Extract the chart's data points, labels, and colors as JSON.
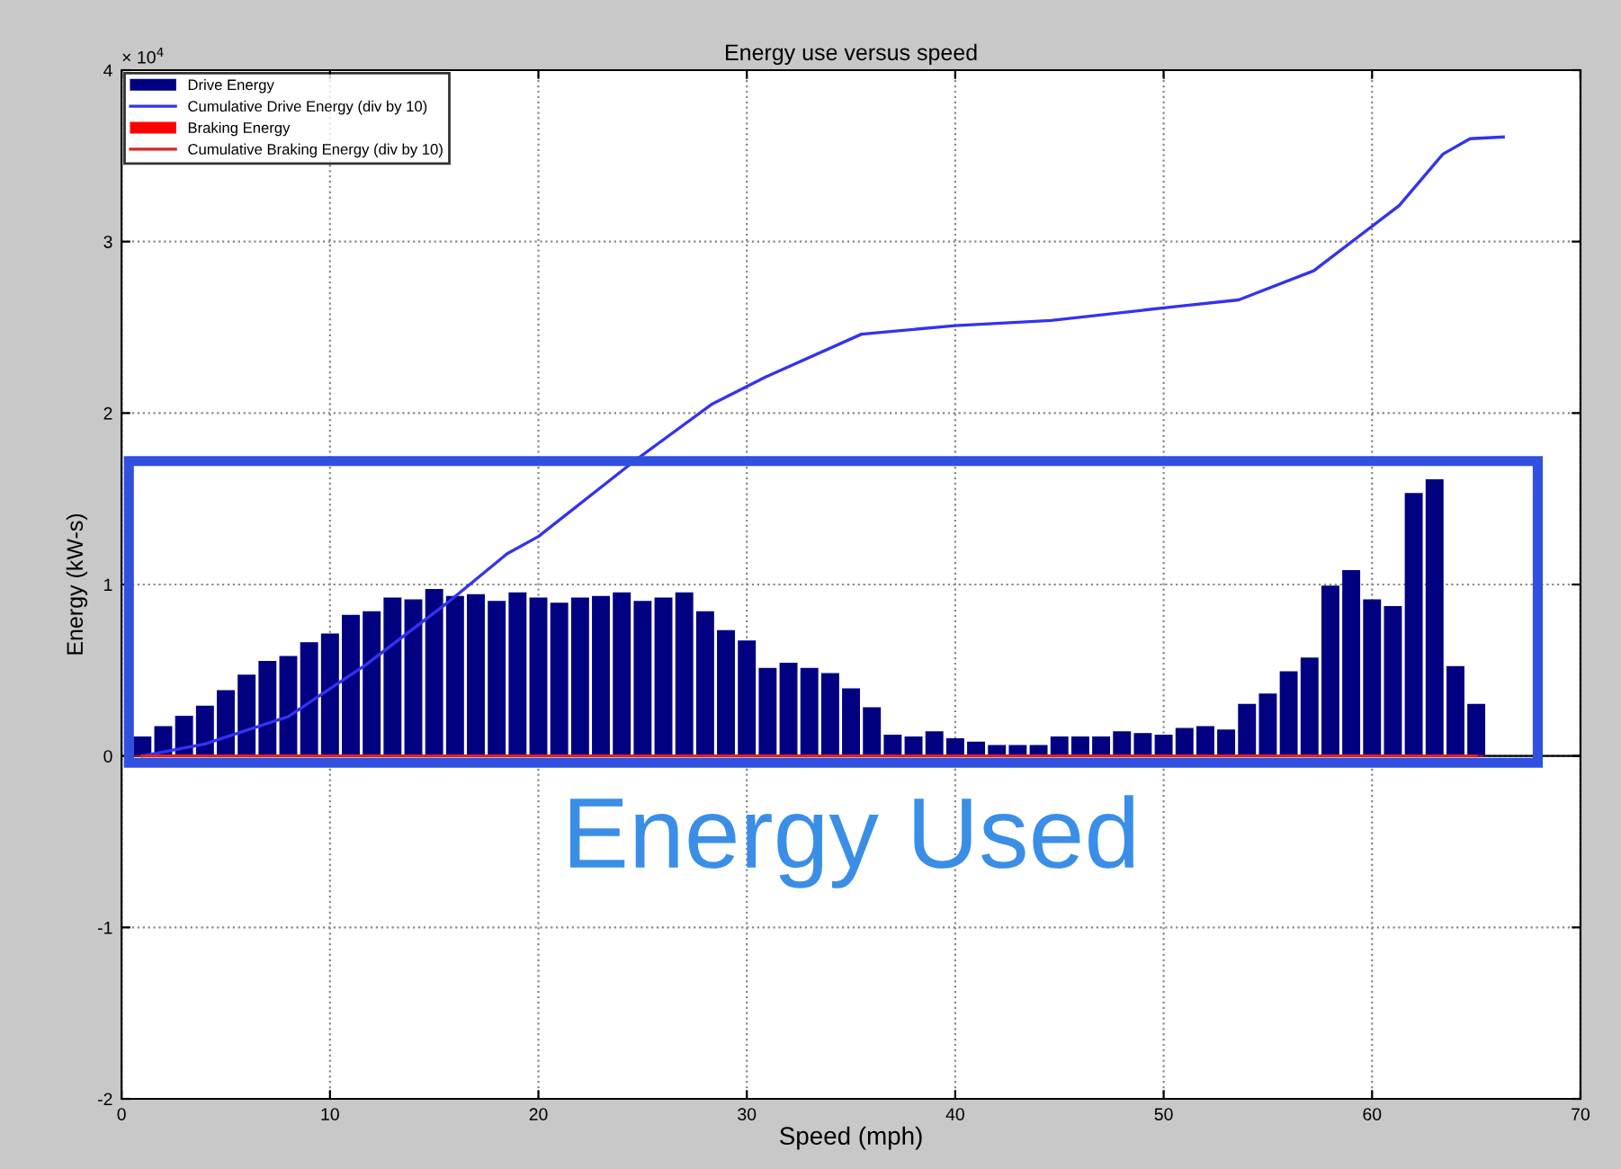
{
  "chart_data": {
    "type": "bar",
    "title": "Energy use versus speed",
    "xlabel": "Speed (mph)",
    "ylabel": "Energy (kW-s)",
    "x": [
      1,
      2,
      3,
      4,
      5,
      6,
      7,
      8,
      9,
      10,
      11,
      12,
      13,
      14,
      15,
      16,
      17,
      18,
      19,
      20,
      21,
      22,
      23,
      24,
      25,
      26,
      27,
      28,
      29,
      30,
      31,
      32,
      33,
      34,
      35,
      36,
      37,
      38,
      39,
      40,
      41,
      42,
      43,
      44,
      45,
      46,
      47,
      48,
      49,
      50,
      51,
      52,
      53,
      54,
      55,
      56,
      57,
      58,
      59,
      60,
      61,
      62,
      63,
      64,
      65
    ],
    "series": [
      {
        "name": "Drive Energy",
        "color": "#000080",
        "values": [
          0.11,
          0.17,
          0.23,
          0.29,
          0.38,
          0.47,
          0.55,
          0.58,
          0.66,
          0.71,
          0.82,
          0.84,
          0.92,
          0.91,
          0.97,
          0.93,
          0.94,
          0.9,
          0.95,
          0.92,
          0.89,
          0.92,
          0.93,
          0.95,
          0.9,
          0.92,
          0.95,
          0.84,
          0.73,
          0.67,
          0.51,
          0.54,
          0.51,
          0.48,
          0.39,
          0.28,
          0.12,
          0.11,
          0.14,
          0.1,
          0.08,
          0.06,
          0.06,
          0.06,
          0.11,
          0.11,
          0.11,
          0.14,
          0.13,
          0.12,
          0.16,
          0.17,
          0.15,
          0.3,
          0.36,
          0.49,
          0.57,
          0.99,
          1.08,
          0.91,
          0.87,
          1.53,
          1.61,
          0.52,
          0.3
        ]
      },
      {
        "name": "Cumulative Drive Energy (div by 10)",
        "type": "line",
        "color": "#3333ee",
        "x": [
          1,
          4,
          8,
          11.7,
          15.7,
          18.5,
          20,
          24.6,
          28.3,
          30.9,
          35.5,
          40,
          44.6,
          50.5,
          53.6,
          57.2,
          61.3,
          63.4,
          64.7,
          66.3
        ],
        "values": [
          0,
          0.07,
          0.23,
          0.53,
          0.9,
          1.18,
          1.28,
          1.72,
          2.05,
          2.21,
          2.46,
          2.51,
          2.54,
          2.62,
          2.66,
          2.83,
          3.21,
          3.51,
          3.6,
          3.61
        ]
      },
      {
        "name": "Braking Energy",
        "color": "#ff0000",
        "values": [
          0,
          0,
          0,
          0,
          0,
          0,
          0,
          0,
          0,
          0,
          0,
          0,
          0,
          0,
          0,
          0,
          0,
          0,
          0,
          0,
          0,
          0,
          0,
          0,
          0,
          0,
          0,
          0,
          0,
          0,
          0,
          0,
          0,
          0,
          0,
          0,
          0,
          0,
          0,
          0,
          0,
          0,
          0,
          0,
          0,
          0,
          0,
          0,
          0,
          0,
          0,
          0,
          0,
          0,
          0,
          0,
          0,
          0,
          0,
          0,
          0,
          0,
          0,
          0,
          0
        ]
      },
      {
        "name": "Cumulative Braking Energy (div by 10)",
        "type": "line",
        "color": "#dd2222",
        "x": [
          1,
          65
        ],
        "values": [
          0,
          0
        ]
      }
    ],
    "xlim": [
      0,
      70
    ],
    "xticks": [
      0,
      10,
      20,
      30,
      40,
      50,
      60,
      70
    ],
    "ylim": [
      -2,
      4
    ],
    "yticks": [
      -2,
      -1,
      0,
      1,
      2,
      3,
      4
    ],
    "ref_lines": [
      {
        "axis": "y",
        "value": 0,
        "color": "#000000"
      }
    ],
    "annotations": [
      "× 10$^{4}$",
      "Energy Used"
    ],
    "grid": true,
    "legend": "top left"
  }
}
